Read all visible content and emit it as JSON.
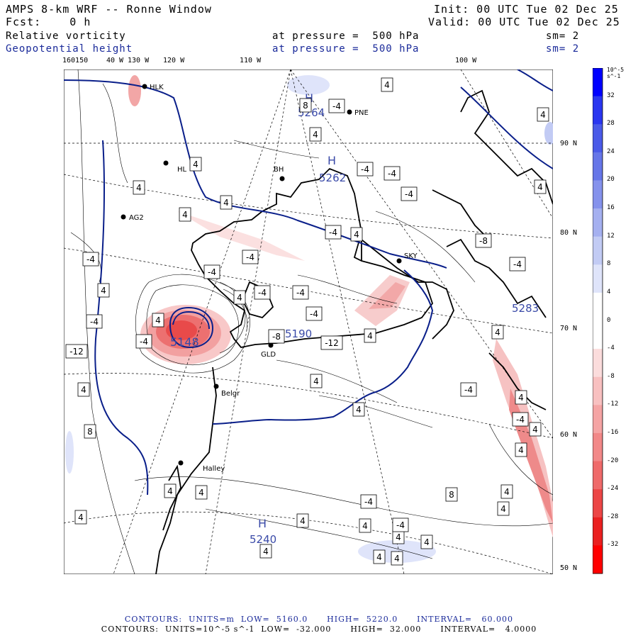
{
  "header": {
    "title": "AMPS 8-km WRF -- Ronne Window",
    "fcst": "Fcst:    0 h",
    "init": "Init: 00 UTC Tue 02 Dec 25",
    "valid": "Valid: 00 UTC Tue 02 Dec 25",
    "field1": {
      "name": "Relative vorticity",
      "pressure": "at pressure =  500 hPa",
      "sm": "sm= 2"
    },
    "field2": {
      "name": "Geopotential height",
      "pressure": "at pressure =  500 hPa",
      "sm": "sm= 2"
    }
  },
  "longitude_labels": [
    "160150",
    "40 W",
    "130 W",
    "120 W",
    "110 W",
    "100 W"
  ],
  "latitude_labels": [
    "90 N",
    "80 N",
    "70 N",
    "60 N",
    "50 N"
  ],
  "colorbar": {
    "units": "10^-5 s^-1",
    "ticks": [
      "32",
      "28",
      "24",
      "20",
      "16",
      "12",
      "8",
      "4",
      "0",
      "-4",
      "-8",
      "-12",
      "-16",
      "-20",
      "-24",
      "-28",
      "-32"
    ],
    "colors": [
      "#0000ff",
      "#2a36f0",
      "#4a5ae8",
      "#6676e8",
      "#8592ec",
      "#a5b0f0",
      "#c2cbf4",
      "#dfe4fa",
      "#ffffff",
      "#ffffff",
      "#fbdcdc",
      "#f8c0c0",
      "#f5a4a4",
      "#f28888",
      "#ef6a6a",
      "#ec4646",
      "#ea2020",
      "#ff0000"
    ]
  },
  "stations": [
    {
      "name": "HLK"
    },
    {
      "name": "PNE"
    },
    {
      "name": "HL"
    },
    {
      "name": "BH"
    },
    {
      "name": "AG2"
    },
    {
      "name": "SKY"
    },
    {
      "name": "Belgr"
    },
    {
      "name": "Halley"
    },
    {
      "name": "GLD"
    }
  ],
  "pressure_centers": [
    {
      "letter": "H",
      "value": "5264"
    },
    {
      "letter": "H",
      "value": "5262"
    },
    {
      "letter": "H",
      "value": "5240"
    },
    {
      "letter": "",
      "value": "5148"
    },
    {
      "letter": "",
      "value": "5190"
    },
    {
      "letter": "",
      "value": "5283"
    }
  ],
  "contour_labels": [
    "4",
    "8",
    "-4",
    "4",
    "4",
    "4",
    "-4",
    "-4",
    "4",
    "4",
    "4",
    "-4",
    "4",
    "-4",
    "-4",
    "-4",
    "-4",
    "-4",
    "4",
    "-4",
    "4",
    "-8",
    "-4",
    "4",
    "-4",
    "-4",
    "4",
    "-4",
    "-12",
    "-8",
    "-12",
    "4",
    "4",
    "4",
    "4",
    "4",
    "-4",
    "-4",
    "4",
    "8",
    "4",
    "4",
    "4",
    "8",
    "4",
    "4",
    "4",
    "4",
    "4",
    "4",
    "4",
    "4",
    "-4",
    "4",
    "4",
    "4",
    "-4"
  ],
  "footer": {
    "line1": "CONTOURS:  UNITS=m  LOW=  5160.0      HIGH=  5220.0      INTERVAL=   60.000",
    "line2": "CONTOURS:  UNITS=10^-5 s^-1  LOW=  -32.000      HIGH=  32.000      INTERVAL=   4.0000"
  }
}
